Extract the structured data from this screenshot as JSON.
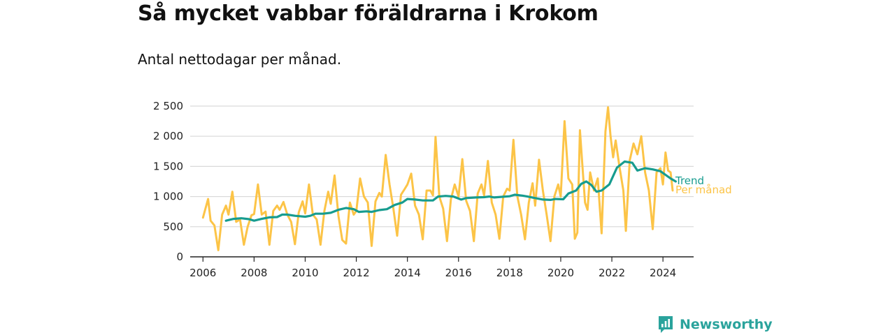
{
  "title": "Så mycket vabbar föräldrarna i Krokom",
  "subtitle": "Antal nettodagar per månad.",
  "brand": {
    "name": "Newsworthy",
    "icon": "chart-bubble-icon",
    "color": "#2aa39c"
  },
  "colors": {
    "monthly": "#fcc447",
    "trend": "#179c8f",
    "grid": "#d9d9d9",
    "axis": "#222222"
  },
  "chart_data": {
    "type": "line",
    "title": "Så mycket vabbar föräldrarna i Krokom",
    "subtitle": "Antal nettodagar per månad.",
    "xlabel": "",
    "ylabel": "",
    "xlim": [
      2005.5,
      2025.2
    ],
    "ylim": [
      0,
      2500
    ],
    "x_ticks": [
      2006,
      2008,
      2010,
      2012,
      2014,
      2016,
      2018,
      2020,
      2022,
      2024
    ],
    "x_tick_labels": [
      "2006",
      "2008",
      "2010",
      "2012",
      "2014",
      "2016",
      "2018",
      "2020",
      "2022",
      "2024"
    ],
    "y_ticks": [
      0,
      500,
      1000,
      1500,
      2000,
      2500
    ],
    "y_tick_labels": [
      "0",
      "500",
      "1 000",
      "1 500",
      "2 000",
      "2 500"
    ],
    "grid": true,
    "series": [
      {
        "name": "Trend",
        "label": "Trend",
        "color": "#179c8f",
        "points": [
          [
            2006.9,
            600
          ],
          [
            2007.2,
            630
          ],
          [
            2007.5,
            640
          ],
          [
            2007.8,
            625
          ],
          [
            2008.0,
            600
          ],
          [
            2008.3,
            630
          ],
          [
            2008.6,
            655
          ],
          [
            2008.9,
            660
          ],
          [
            2009.1,
            700
          ],
          [
            2009.3,
            700
          ],
          [
            2009.6,
            680
          ],
          [
            2010.0,
            665
          ],
          [
            2010.2,
            680
          ],
          [
            2010.4,
            715
          ],
          [
            2010.7,
            715
          ],
          [
            2011.0,
            730
          ],
          [
            2011.3,
            780
          ],
          [
            2011.6,
            810
          ],
          [
            2011.9,
            790
          ],
          [
            2012.1,
            745
          ],
          [
            2012.4,
            755
          ],
          [
            2012.6,
            745
          ],
          [
            2012.9,
            775
          ],
          [
            2013.2,
            790
          ],
          [
            2013.5,
            860
          ],
          [
            2013.8,
            900
          ],
          [
            2014.0,
            960
          ],
          [
            2014.3,
            950
          ],
          [
            2014.6,
            935
          ],
          [
            2015.0,
            935
          ],
          [
            2015.2,
            1000
          ],
          [
            2015.5,
            1010
          ],
          [
            2015.8,
            1000
          ],
          [
            2016.1,
            950
          ],
          [
            2016.3,
            975
          ],
          [
            2016.7,
            985
          ],
          [
            2017.0,
            990
          ],
          [
            2017.2,
            1000
          ],
          [
            2017.4,
            985
          ],
          [
            2017.7,
            995
          ],
          [
            2018.0,
            1005
          ],
          [
            2018.2,
            1030
          ],
          [
            2018.5,
            1015
          ],
          [
            2018.7,
            1000
          ],
          [
            2019.0,
            975
          ],
          [
            2019.3,
            950
          ],
          [
            2019.6,
            945
          ],
          [
            2019.8,
            960
          ],
          [
            2020.1,
            955
          ],
          [
            2020.3,
            1050
          ],
          [
            2020.6,
            1100
          ],
          [
            2020.8,
            1210
          ],
          [
            2021.0,
            1250
          ],
          [
            2021.2,
            1190
          ],
          [
            2021.4,
            1080
          ],
          [
            2021.6,
            1100
          ],
          [
            2021.9,
            1200
          ],
          [
            2022.2,
            1480
          ],
          [
            2022.5,
            1580
          ],
          [
            2022.8,
            1560
          ],
          [
            2023.0,
            1430
          ],
          [
            2023.3,
            1470
          ],
          [
            2023.6,
            1450
          ],
          [
            2023.9,
            1420
          ],
          [
            2024.1,
            1360
          ],
          [
            2024.3,
            1300
          ],
          [
            2024.5,
            1250
          ]
        ]
      },
      {
        "name": "Per månad",
        "label": "Per månad",
        "color": "#fcc447",
        "points": [
          [
            2006.0,
            650
          ],
          [
            2006.2,
            960
          ],
          [
            2006.3,
            600
          ],
          [
            2006.45,
            520
          ],
          [
            2006.6,
            110
          ],
          [
            2006.75,
            700
          ],
          [
            2006.9,
            850
          ],
          [
            2007.0,
            700
          ],
          [
            2007.15,
            1080
          ],
          [
            2007.3,
            580
          ],
          [
            2007.45,
            620
          ],
          [
            2007.6,
            200
          ],
          [
            2007.75,
            500
          ],
          [
            2007.9,
            690
          ],
          [
            2008.0,
            710
          ],
          [
            2008.15,
            1200
          ],
          [
            2008.3,
            700
          ],
          [
            2008.45,
            750
          ],
          [
            2008.6,
            200
          ],
          [
            2008.75,
            760
          ],
          [
            2008.9,
            850
          ],
          [
            2009.0,
            780
          ],
          [
            2009.15,
            910
          ],
          [
            2009.3,
            700
          ],
          [
            2009.45,
            580
          ],
          [
            2009.6,
            210
          ],
          [
            2009.75,
            740
          ],
          [
            2009.9,
            920
          ],
          [
            2010.0,
            720
          ],
          [
            2010.15,
            1200
          ],
          [
            2010.3,
            700
          ],
          [
            2010.45,
            620
          ],
          [
            2010.6,
            200
          ],
          [
            2010.75,
            760
          ],
          [
            2010.9,
            1080
          ],
          [
            2011.0,
            880
          ],
          [
            2011.15,
            1350
          ],
          [
            2011.3,
            680
          ],
          [
            2011.45,
            280
          ],
          [
            2011.6,
            220
          ],
          [
            2011.75,
            900
          ],
          [
            2011.9,
            700
          ],
          [
            2012.0,
            760
          ],
          [
            2012.15,
            1300
          ],
          [
            2012.3,
            1000
          ],
          [
            2012.45,
            900
          ],
          [
            2012.6,
            180
          ],
          [
            2012.75,
            920
          ],
          [
            2012.9,
            1060
          ],
          [
            2013.0,
            1000
          ],
          [
            2013.15,
            1690
          ],
          [
            2013.3,
            1200
          ],
          [
            2013.45,
            800
          ],
          [
            2013.6,
            350
          ],
          [
            2013.75,
            1030
          ],
          [
            2013.9,
            1130
          ],
          [
            2014.0,
            1200
          ],
          [
            2014.15,
            1380
          ],
          [
            2014.3,
            850
          ],
          [
            2014.45,
            700
          ],
          [
            2014.6,
            290
          ],
          [
            2014.75,
            1100
          ],
          [
            2014.9,
            1100
          ],
          [
            2015.0,
            1020
          ],
          [
            2015.1,
            1990
          ],
          [
            2015.25,
            1000
          ],
          [
            2015.4,
            800
          ],
          [
            2015.55,
            260
          ],
          [
            2015.7,
            950
          ],
          [
            2015.85,
            1200
          ],
          [
            2016.0,
            1000
          ],
          [
            2016.15,
            1620
          ],
          [
            2016.3,
            930
          ],
          [
            2016.45,
            760
          ],
          [
            2016.6,
            260
          ],
          [
            2016.75,
            1050
          ],
          [
            2016.9,
            1200
          ],
          [
            2017.0,
            1020
          ],
          [
            2017.15,
            1590
          ],
          [
            2017.3,
            900
          ],
          [
            2017.45,
            700
          ],
          [
            2017.6,
            300
          ],
          [
            2017.75,
            1000
          ],
          [
            2017.9,
            1130
          ],
          [
            2018.0,
            1100
          ],
          [
            2018.15,
            1940
          ],
          [
            2018.3,
            1010
          ],
          [
            2018.45,
            700
          ],
          [
            2018.6,
            290
          ],
          [
            2018.75,
            900
          ],
          [
            2018.9,
            1220
          ],
          [
            2019.0,
            850
          ],
          [
            2019.15,
            1610
          ],
          [
            2019.3,
            1100
          ],
          [
            2019.45,
            700
          ],
          [
            2019.6,
            260
          ],
          [
            2019.75,
            1000
          ],
          [
            2019.9,
            1200
          ],
          [
            2020.0,
            1000
          ],
          [
            2020.15,
            2250
          ],
          [
            2020.3,
            1300
          ],
          [
            2020.45,
            1200
          ],
          [
            2020.55,
            300
          ],
          [
            2020.65,
            400
          ],
          [
            2020.75,
            2100
          ],
          [
            2020.85,
            1500
          ],
          [
            2020.95,
            900
          ],
          [
            2021.05,
            780
          ],
          [
            2021.15,
            1400
          ],
          [
            2021.3,
            1100
          ],
          [
            2021.45,
            1300
          ],
          [
            2021.6,
            390
          ],
          [
            2021.75,
            2080
          ],
          [
            2021.85,
            2480
          ],
          [
            2021.95,
            2000
          ],
          [
            2022.05,
            1650
          ],
          [
            2022.15,
            1930
          ],
          [
            2022.3,
            1490
          ],
          [
            2022.45,
            1100
          ],
          [
            2022.55,
            430
          ],
          [
            2022.7,
            1600
          ],
          [
            2022.85,
            1880
          ],
          [
            2023.0,
            1700
          ],
          [
            2023.15,
            2000
          ],
          [
            2023.3,
            1400
          ],
          [
            2023.45,
            1100
          ],
          [
            2023.6,
            460
          ],
          [
            2023.75,
            1400
          ],
          [
            2023.9,
            1470
          ],
          [
            2024.0,
            1200
          ],
          [
            2024.1,
            1730
          ],
          [
            2024.2,
            1430
          ],
          [
            2024.3,
            1400
          ],
          [
            2024.38,
            1100
          ]
        ]
      }
    ]
  }
}
